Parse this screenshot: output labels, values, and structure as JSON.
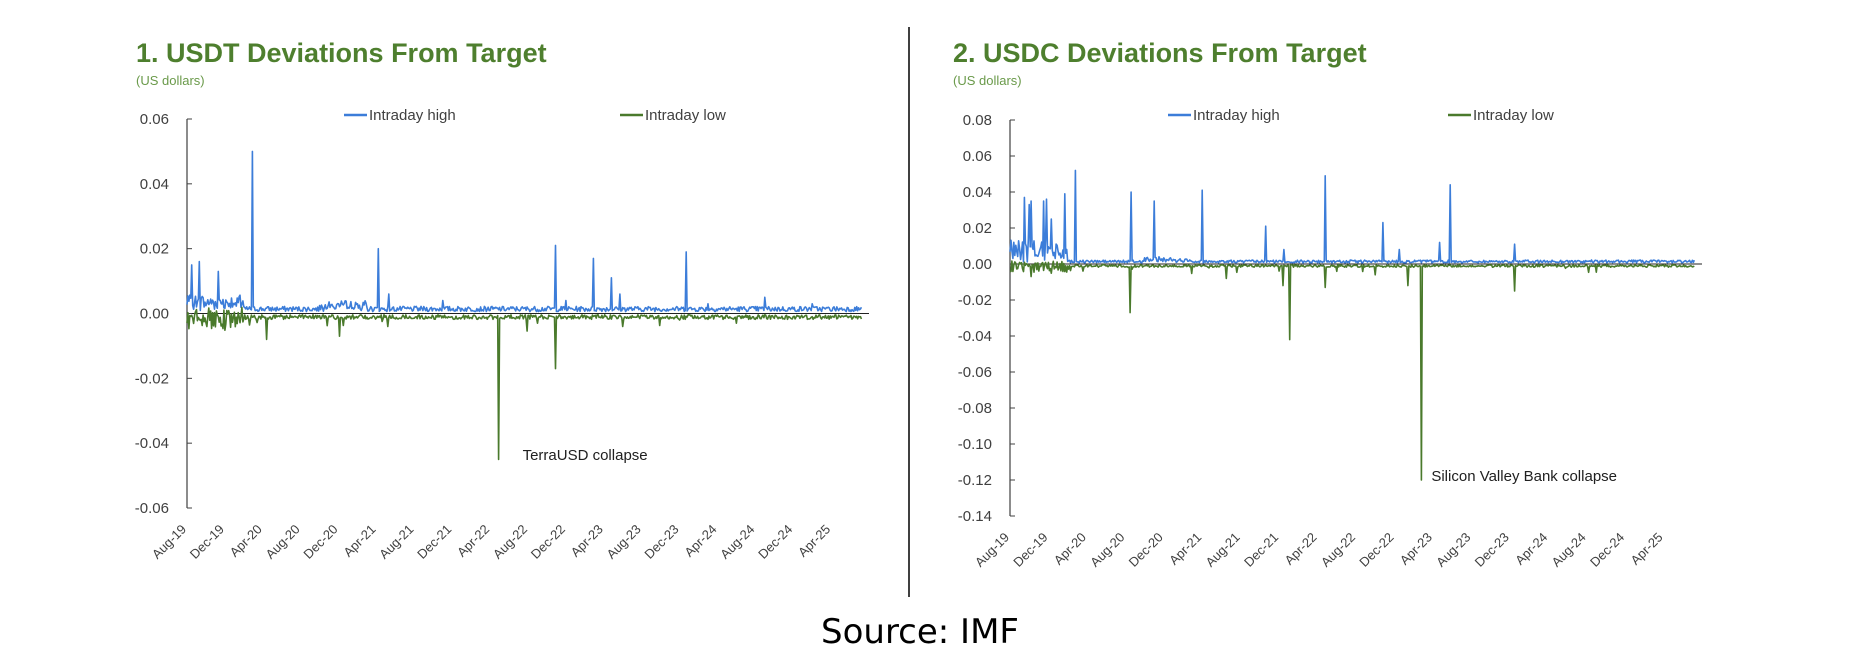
{
  "colors": {
    "title": "#4e7f2e",
    "high": "#3c7dd9",
    "low": "#4a7a2c"
  },
  "source": "Source:  IMF",
  "chart_data": [
    {
      "type": "line",
      "title": "1. USDT Deviations From Target",
      "subtitle": "(US dollars)",
      "xlabel": "",
      "ylabel": "US dollars",
      "ylim": [
        -0.06,
        0.06
      ],
      "yticks": [
        "0.06",
        "0.04",
        "0.02",
        "0.00",
        "-0.02",
        "-0.04",
        "-0.06"
      ],
      "ytick_values": [
        0.06,
        0.04,
        0.02,
        0.0,
        -0.02,
        -0.04,
        -0.06
      ],
      "x_months_span": 72,
      "xticks": [
        "Aug-19",
        "Dec-19",
        "Apr-20",
        "Aug-20",
        "Dec-20",
        "Apr-21",
        "Aug-21",
        "Dec-21",
        "Apr-22",
        "Aug-22",
        "Dec-22",
        "Apr-23",
        "Aug-23",
        "Dec-23",
        "Apr-24",
        "Aug-24",
        "Dec-24",
        "Apr-25"
      ],
      "legend": [
        "Intraday high",
        "Intraday low"
      ],
      "legend_position": "top",
      "annotation": {
        "text": "TerraUSD collapse",
        "month": 33,
        "value": -0.045
      },
      "series": [
        {
          "name": "Intraday high",
          "spikes": [
            [
              0.5,
              0.015
            ],
            [
              1.3,
              0.016
            ],
            [
              3.3,
              0.013
            ],
            [
              6.9,
              0.05
            ],
            [
              20.2,
              0.02
            ],
            [
              21.3,
              0.006
            ],
            [
              27,
              0.004
            ],
            [
              38.9,
              0.021
            ],
            [
              40,
              0.004
            ],
            [
              42.9,
              0.017
            ],
            [
              44.8,
              0.011
            ],
            [
              45.7,
              0.006
            ],
            [
              52.7,
              0.019
            ],
            [
              55,
              0.003
            ],
            [
              61,
              0.005
            ],
            [
              66,
              0.003
            ]
          ]
        },
        {
          "name": "Intraday low",
          "spikes": [
            [
              8.4,
              -0.008
            ],
            [
              16.1,
              -0.007
            ],
            [
              21.2,
              -0.004
            ],
            [
              32.9,
              -0.045
            ],
            [
              37,
              -0.003
            ],
            [
              38.9,
              -0.017
            ],
            [
              46,
              -0.004
            ],
            [
              52,
              -0.002
            ],
            [
              58,
              -0.003
            ]
          ]
        }
      ]
    },
    {
      "type": "line",
      "title": "2. USDC Deviations From Target",
      "subtitle": "(US dollars)",
      "xlabel": "",
      "ylabel": "US dollars",
      "ylim": [
        -0.14,
        0.08
      ],
      "yticks": [
        "0.08",
        "0.06",
        "0.04",
        "0.02",
        "0.00",
        "-0.02",
        "-0.04",
        "-0.06",
        "-0.08",
        "-0.10",
        "-0.12",
        "-0.14"
      ],
      "ytick_values": [
        0.08,
        0.06,
        0.04,
        0.02,
        0.0,
        -0.02,
        -0.04,
        -0.06,
        -0.08,
        -0.1,
        -0.12,
        -0.14
      ],
      "x_months_span": 72,
      "xticks": [
        "Aug-19",
        "Dec-19",
        "Apr-20",
        "Aug-20",
        "Dec-20",
        "Apr-21",
        "Aug-21",
        "Dec-21",
        "Apr-22",
        "Aug-22",
        "Dec-22",
        "Apr-23",
        "Aug-23",
        "Dec-23",
        "Apr-24",
        "Aug-24",
        "Dec-24",
        "Apr-25"
      ],
      "legend": [
        "Intraday high",
        "Intraday low"
      ],
      "legend_position": "top",
      "annotation": {
        "text": "Silicon Valley Bank collapse",
        "month": 42.8,
        "value": -0.12
      },
      "series": [
        {
          "name": "Intraday high",
          "spikes": [
            [
              1.5,
              0.037
            ],
            [
              2.0,
              0.033
            ],
            [
              2.2,
              0.035
            ],
            [
              3.5,
              0.035
            ],
            [
              3.8,
              0.036
            ],
            [
              4.3,
              0.025
            ],
            [
              5.7,
              0.039
            ],
            [
              6.8,
              0.052
            ],
            [
              12.6,
              0.04
            ],
            [
              15,
              0.035
            ],
            [
              20,
              0.041
            ],
            [
              26.6,
              0.021
            ],
            [
              28.5,
              0.008
            ],
            [
              32.8,
              0.049
            ],
            [
              38.8,
              0.023
            ],
            [
              40.5,
              0.008
            ],
            [
              44.7,
              0.012
            ],
            [
              45.8,
              0.044
            ],
            [
              52.5,
              0.011
            ]
          ]
        },
        {
          "name": "Intraday low",
          "spikes": [
            [
              2.2,
              -0.007
            ],
            [
              12.5,
              -0.027
            ],
            [
              22.5,
              -0.008
            ],
            [
              28.4,
              -0.012
            ],
            [
              29.1,
              -0.042
            ],
            [
              32.8,
              -0.013
            ],
            [
              38,
              -0.006
            ],
            [
              41.4,
              -0.012
            ],
            [
              42.8,
              -0.12
            ],
            [
              52.5,
              -0.015
            ]
          ]
        }
      ]
    }
  ]
}
